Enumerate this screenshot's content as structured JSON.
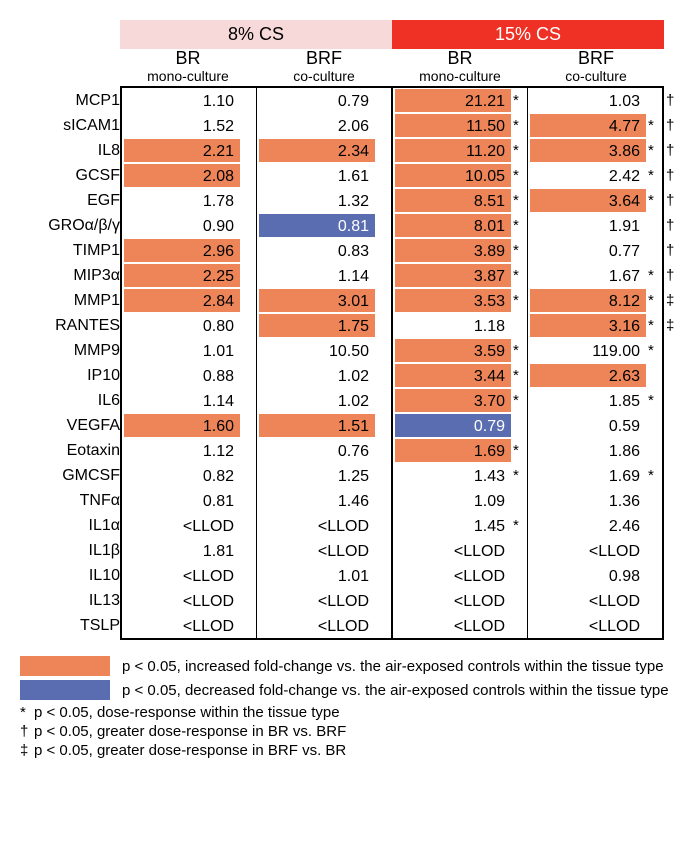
{
  "colors": {
    "group1_bg": "#f7d9d9",
    "group2_bg": "#ee3124",
    "increase": "#ee8559",
    "decrease": "#5a6db0",
    "white": "#ffffff",
    "text": "#000000",
    "decrease_text": "#ffffff"
  },
  "groupHeaders": [
    "8% CS",
    "15% CS"
  ],
  "subHeaders": [
    {
      "t1": "BR",
      "t2": "mono-culture"
    },
    {
      "t1": "BRF",
      "t2": "co-culture"
    },
    {
      "t1": "BR",
      "t2": "mono-culture"
    },
    {
      "t1": "BRF",
      "t2": "co-culture"
    }
  ],
  "rows": [
    {
      "label": "MCP1",
      "cells": [
        {
          "v": "1.10",
          "hl": ""
        },
        {
          "v": "0.79",
          "hl": ""
        },
        {
          "v": "21.21",
          "hl": "inc",
          "s": "*"
        },
        {
          "v": "1.03",
          "hl": ""
        }
      ],
      "mark": "†"
    },
    {
      "label": "sICAM1",
      "cells": [
        {
          "v": "1.52",
          "hl": ""
        },
        {
          "v": "2.06",
          "hl": ""
        },
        {
          "v": "11.50",
          "hl": "inc",
          "s": "*"
        },
        {
          "v": "4.77",
          "hl": "inc",
          "s": "*"
        }
      ],
      "mark": "†"
    },
    {
      "label": "IL8",
      "cells": [
        {
          "v": "2.21",
          "hl": "inc"
        },
        {
          "v": "2.34",
          "hl": "inc"
        },
        {
          "v": "11.20",
          "hl": "inc",
          "s": "*"
        },
        {
          "v": "3.86",
          "hl": "inc",
          "s": "*"
        }
      ],
      "mark": "†"
    },
    {
      "label": "GCSF",
      "cells": [
        {
          "v": "2.08",
          "hl": "inc"
        },
        {
          "v": "1.61",
          "hl": ""
        },
        {
          "v": "10.05",
          "hl": "inc",
          "s": "*"
        },
        {
          "v": "2.42",
          "hl": "",
          "s": "*"
        }
      ],
      "mark": "†"
    },
    {
      "label": "EGF",
      "cells": [
        {
          "v": "1.78",
          "hl": ""
        },
        {
          "v": "1.32",
          "hl": ""
        },
        {
          "v": "8.51",
          "hl": "inc",
          "s": "*"
        },
        {
          "v": "3.64",
          "hl": "inc",
          "s": "*"
        }
      ],
      "mark": "†"
    },
    {
      "label": "GROα/β/γ",
      "cells": [
        {
          "v": "0.90",
          "hl": ""
        },
        {
          "v": "0.81",
          "hl": "dec"
        },
        {
          "v": "8.01",
          "hl": "inc",
          "s": "*"
        },
        {
          "v": "1.91",
          "hl": ""
        }
      ],
      "mark": "†"
    },
    {
      "label": "TIMP1",
      "cells": [
        {
          "v": "2.96",
          "hl": "inc"
        },
        {
          "v": "0.83",
          "hl": ""
        },
        {
          "v": "3.89",
          "hl": "inc",
          "s": "*"
        },
        {
          "v": "0.77",
          "hl": ""
        }
      ],
      "mark": "†"
    },
    {
      "label": "MIP3α",
      "cells": [
        {
          "v": "2.25",
          "hl": "inc"
        },
        {
          "v": "1.14",
          "hl": ""
        },
        {
          "v": "3.87",
          "hl": "inc",
          "s": "*"
        },
        {
          "v": "1.67",
          "hl": "",
          "s": "*"
        }
      ],
      "mark": "†"
    },
    {
      "label": "MMP1",
      "cells": [
        {
          "v": "2.84",
          "hl": "inc"
        },
        {
          "v": "3.01",
          "hl": "inc"
        },
        {
          "v": "3.53",
          "hl": "inc",
          "s": "*"
        },
        {
          "v": "8.12",
          "hl": "inc",
          "s": "*"
        }
      ],
      "mark": "‡"
    },
    {
      "label": "RANTES",
      "cells": [
        {
          "v": "0.80",
          "hl": ""
        },
        {
          "v": "1.75",
          "hl": "inc"
        },
        {
          "v": "1.18",
          "hl": ""
        },
        {
          "v": "3.16",
          "hl": "inc",
          "s": "*"
        }
      ],
      "mark": "‡"
    },
    {
      "label": "MMP9",
      "cells": [
        {
          "v": "1.01",
          "hl": ""
        },
        {
          "v": "10.50",
          "hl": ""
        },
        {
          "v": "3.59",
          "hl": "inc",
          "s": "*"
        },
        {
          "v": "119.00",
          "hl": "",
          "s": "*"
        }
      ],
      "mark": ""
    },
    {
      "label": "IP10",
      "cells": [
        {
          "v": "0.88",
          "hl": ""
        },
        {
          "v": "1.02",
          "hl": ""
        },
        {
          "v": "3.44",
          "hl": "inc",
          "s": "*"
        },
        {
          "v": "2.63",
          "hl": "inc"
        }
      ],
      "mark": ""
    },
    {
      "label": "IL6",
      "cells": [
        {
          "v": "1.14",
          "hl": ""
        },
        {
          "v": "1.02",
          "hl": ""
        },
        {
          "v": "3.70",
          "hl": "inc",
          "s": "*"
        },
        {
          "v": "1.85",
          "hl": "",
          "s": "*"
        }
      ],
      "mark": ""
    },
    {
      "label": "VEGFA",
      "cells": [
        {
          "v": "1.60",
          "hl": "inc"
        },
        {
          "v": "1.51",
          "hl": "inc"
        },
        {
          "v": "0.79",
          "hl": "dec"
        },
        {
          "v": "0.59",
          "hl": ""
        }
      ],
      "mark": ""
    },
    {
      "label": "Eotaxin",
      "cells": [
        {
          "v": "1.12",
          "hl": ""
        },
        {
          "v": "0.76",
          "hl": ""
        },
        {
          "v": "1.69",
          "hl": "inc",
          "s": "*"
        },
        {
          "v": "1.86",
          "hl": ""
        }
      ],
      "mark": ""
    },
    {
      "label": "GMCSF",
      "cells": [
        {
          "v": "0.82",
          "hl": ""
        },
        {
          "v": "1.25",
          "hl": ""
        },
        {
          "v": "1.43",
          "hl": "",
          "s": "*"
        },
        {
          "v": "1.69",
          "hl": "",
          "s": "*"
        }
      ],
      "mark": ""
    },
    {
      "label": "TNFα",
      "cells": [
        {
          "v": "0.81",
          "hl": ""
        },
        {
          "v": "1.46",
          "hl": ""
        },
        {
          "v": "1.09",
          "hl": ""
        },
        {
          "v": "1.36",
          "hl": ""
        }
      ],
      "mark": ""
    },
    {
      "label": "IL1α",
      "cells": [
        {
          "v": "<LLOD",
          "hl": ""
        },
        {
          "v": "<LLOD",
          "hl": ""
        },
        {
          "v": "1.45",
          "hl": "",
          "s": "*"
        },
        {
          "v": "2.46",
          "hl": ""
        }
      ],
      "mark": ""
    },
    {
      "label": "IL1β",
      "cells": [
        {
          "v": "1.81",
          "hl": ""
        },
        {
          "v": "<LLOD",
          "hl": ""
        },
        {
          "v": "<LLOD",
          "hl": ""
        },
        {
          "v": "<LLOD",
          "hl": ""
        }
      ],
      "mark": ""
    },
    {
      "label": "IL10",
      "cells": [
        {
          "v": "<LLOD",
          "hl": ""
        },
        {
          "v": "1.01",
          "hl": ""
        },
        {
          "v": "<LLOD",
          "hl": ""
        },
        {
          "v": "0.98",
          "hl": ""
        }
      ],
      "mark": ""
    },
    {
      "label": "IL13",
      "cells": [
        {
          "v": "<LLOD",
          "hl": ""
        },
        {
          "v": "<LLOD",
          "hl": ""
        },
        {
          "v": "<LLOD",
          "hl": ""
        },
        {
          "v": "<LLOD",
          "hl": ""
        }
      ],
      "mark": ""
    },
    {
      "label": "TSLP",
      "cells": [
        {
          "v": "<LLOD",
          "hl": ""
        },
        {
          "v": "<LLOD",
          "hl": ""
        },
        {
          "v": "<LLOD",
          "hl": ""
        },
        {
          "v": "<LLOD",
          "hl": ""
        }
      ],
      "mark": ""
    }
  ],
  "legend": {
    "inc": "p < 0.05, increased fold-change vs. the air-exposed controls within the tissue type",
    "dec": "p < 0.05, decreased fold-change vs. the air-exposed controls within the tissue type",
    "notes": [
      {
        "sym": "*",
        "text": "p < 0.05, dose-response within the tissue type"
      },
      {
        "sym": "†",
        "text": "p < 0.05, greater dose-response in BR vs. BRF"
      },
      {
        "sym": "‡",
        "text": "p < 0.05, greater dose-response in BRF vs. BR"
      }
    ]
  }
}
